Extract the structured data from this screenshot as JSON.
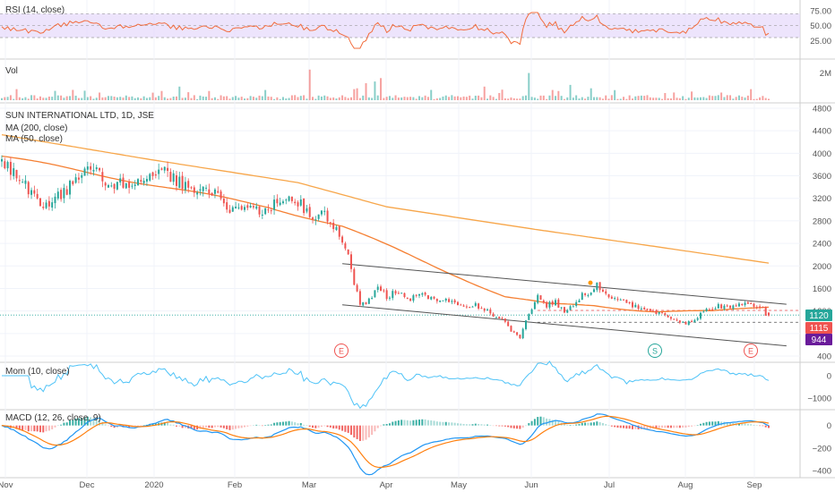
{
  "colors": {
    "up": "#26a69a",
    "down": "#ef5350",
    "ma200": "#f7a64a",
    "ma50": "#f57f32",
    "rsi_line": "#f26c3c",
    "rsi_band": "#e5d8fb",
    "mom_line": "#4fc3f7",
    "macd_line": "#2196f3",
    "signal_line": "#ff7f0e",
    "channel": "#555555",
    "price_tag": "#26a69a",
    "prev_tag": "#ef5350",
    "mom_tag": "#6a1b9a",
    "event": "#ef5350",
    "split": "#26a69a"
  },
  "panes": {
    "rsi": {
      "label": "RSI (14, close)"
    },
    "vol": {
      "label": "Vol"
    },
    "price": {
      "label": "SUN INTERNATIONAL LTD, 1D, JSE",
      "ma200_label": "MA (200, close)",
      "ma50_label": "MA (50, close)"
    },
    "mom": {
      "label": "Mom (10, close)"
    },
    "macd": {
      "label": "MACD (12, 26, close, 9)"
    }
  },
  "tags": {
    "last": "1120",
    "prev": "1115",
    "low": "944"
  },
  "events": [
    "E",
    "E",
    "S"
  ],
  "chart_data": {
    "type": "candlestick",
    "title": "SUN INTERNATIONAL LTD, 1D, JSE",
    "x_ticks": [
      "Nov",
      "Dec",
      "2020",
      "Feb",
      "Mar",
      "Apr",
      "May",
      "Jun",
      "Jul",
      "Aug",
      "Sep"
    ],
    "price_ticks": [
      "4800",
      "4400",
      "4000",
      "3600",
      "3200",
      "2800",
      "2400",
      "2000",
      "1600",
      "1200",
      "800",
      "400"
    ],
    "price_ylim": [
      400,
      4800
    ],
    "rsi_ticks": [
      "75.00",
      "50.00",
      "25.00"
    ],
    "rsi_ylim": [
      0,
      90
    ],
    "vol_ticks": [
      "2M"
    ],
    "mom_ticks": [
      "0",
      "−1000"
    ],
    "mom_ylim": [
      -1400,
      400
    ],
    "macd_ticks": [
      "0",
      "−200",
      "−400"
    ],
    "macd_ylim": [
      -430,
      100
    ],
    "last_close": 1120,
    "prev_close": 1115,
    "price_anchors": [
      [
        0,
        3850
      ],
      [
        4,
        3700
      ],
      [
        10,
        3250
      ],
      [
        15,
        3100
      ],
      [
        20,
        3300
      ],
      [
        30,
        3700
      ],
      [
        35,
        3550
      ],
      [
        40,
        3450
      ],
      [
        50,
        3550
      ],
      [
        55,
        3650
      ],
      [
        60,
        3500
      ],
      [
        67,
        3350
      ],
      [
        72,
        3250
      ],
      [
        77,
        3000
      ],
      [
        82,
        3100
      ],
      [
        88,
        2900
      ],
      [
        92,
        3100
      ],
      [
        97,
        3200
      ],
      [
        100,
        3150
      ],
      [
        103,
        2950
      ],
      [
        106,
        2800
      ],
      [
        108,
        3000
      ],
      [
        111,
        2800
      ],
      [
        114,
        2600
      ],
      [
        117,
        2200
      ],
      [
        119,
        1700
      ],
      [
        121,
        1300
      ],
      [
        124,
        1400
      ],
      [
        127,
        1650
      ],
      [
        130,
        1450
      ],
      [
        133,
        1550
      ],
      [
        137,
        1400
      ],
      [
        141,
        1500
      ],
      [
        145,
        1400
      ],
      [
        148,
        1350
      ],
      [
        152,
        1400
      ],
      [
        156,
        1300
      ],
      [
        160,
        1300
      ],
      [
        164,
        1200
      ],
      [
        169,
        1050
      ],
      [
        172,
        850
      ],
      [
        175,
        720
      ],
      [
        178,
        1150
      ],
      [
        181,
        1450
      ],
      [
        184,
        1300
      ],
      [
        187,
        1350
      ],
      [
        190,
        1200
      ],
      [
        193,
        1300
      ],
      [
        196,
        1500
      ],
      [
        199,
        1550
      ],
      [
        201,
        1650
      ],
      [
        204,
        1500
      ],
      [
        207,
        1400
      ],
      [
        211,
        1350
      ],
      [
        215,
        1250
      ],
      [
        219,
        1200
      ],
      [
        223,
        1150
      ],
      [
        228,
        1000
      ],
      [
        231,
        980
      ],
      [
        234,
        1050
      ],
      [
        238,
        1250
      ],
      [
        242,
        1300
      ],
      [
        246,
        1250
      ],
      [
        250,
        1350
      ],
      [
        254,
        1300
      ],
      [
        257,
        1250
      ],
      [
        259,
        1120
      ]
    ],
    "ma200_anchors": [
      [
        0,
        4330
      ],
      [
        50,
        3890
      ],
      [
        100,
        3480
      ],
      [
        130,
        3050
      ],
      [
        180,
        2650
      ],
      [
        220,
        2350
      ],
      [
        259,
        2050
      ]
    ],
    "ma50_anchors": [
      [
        0,
        3950
      ],
      [
        30,
        3650
      ],
      [
        60,
        3350
      ],
      [
        90,
        3050
      ],
      [
        115,
        2700
      ],
      [
        135,
        2250
      ],
      [
        155,
        1800
      ],
      [
        170,
        1450
      ],
      [
        185,
        1310
      ],
      [
        200,
        1300
      ],
      [
        220,
        1200
      ],
      [
        240,
        1180
      ],
      [
        259,
        1280
      ]
    ],
    "channel_upper": [
      [
        115,
        2040
      ],
      [
        265,
        1320
      ]
    ],
    "channel_lower": [
      [
        115,
        1310
      ],
      [
        265,
        580
      ]
    ],
    "volume_max": 2500000,
    "spike_indices": [
      [
        104,
        0.9
      ],
      [
        178,
        0.8
      ],
      [
        128,
        0.65
      ],
      [
        126,
        0.55
      ],
      [
        123,
        0.5
      ],
      [
        60,
        0.4
      ],
      [
        89,
        0.3
      ],
      [
        120,
        0.35
      ],
      [
        163,
        0.4
      ],
      [
        186,
        0.3
      ],
      [
        192,
        0.45
      ],
      [
        199,
        0.35
      ]
    ]
  }
}
